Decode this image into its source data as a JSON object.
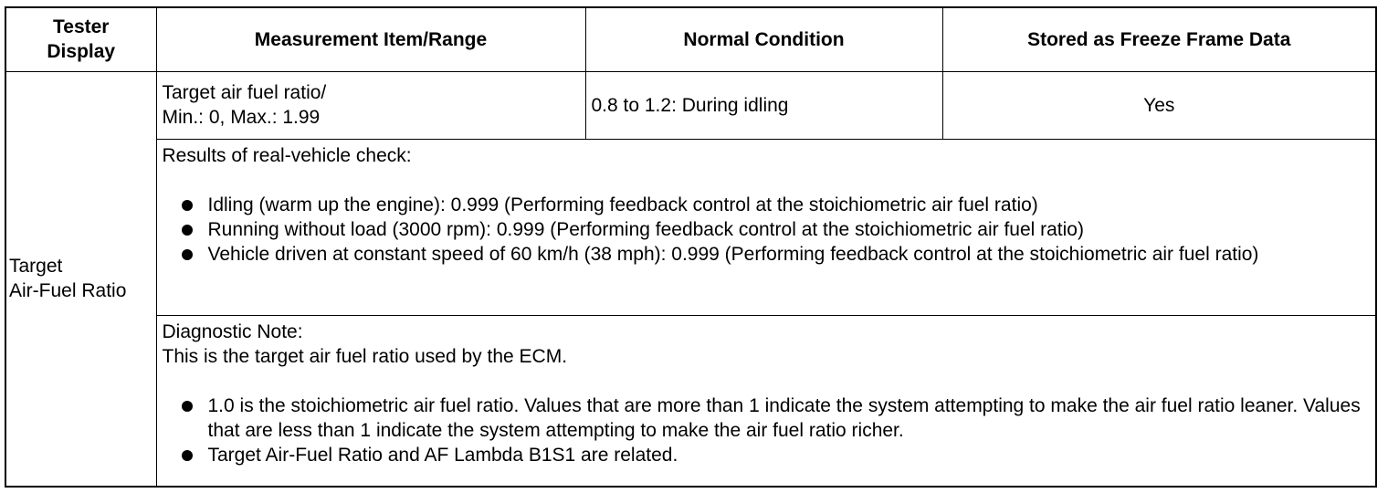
{
  "headers": {
    "tester_display": "Tester\nDisplay",
    "measurement": "Measurement Item/Range",
    "normal_condition": "Normal Condition",
    "freeze_frame": "Stored as Freeze Frame Data"
  },
  "row": {
    "tester_display": "Target\nAir-Fuel Ratio",
    "measurement_line1": "Target air fuel ratio/",
    "measurement_line2": "Min.: 0, Max.: 1.99",
    "normal_condition": "0.8 to 1.2: During idling",
    "freeze_frame": "Yes"
  },
  "real_vehicle": {
    "title": "Results of real-vehicle check:",
    "items": [
      "Idling (warm up the engine): 0.999 (Performing feedback control at the stoichiometric air fuel ratio)",
      "Running without load (3000 rpm): 0.999 (Performing feedback control at the stoichiometric air fuel ratio)",
      "Vehicle driven at constant speed of 60 km/h (38 mph): 0.999 (Performing feedback control at the stoichiometric air fuel ratio)"
    ]
  },
  "diagnostic_note": {
    "title": "Diagnostic Note:",
    "intro": "This is the target air fuel ratio used by the ECM.",
    "items": [
      "1.0 is the stoichiometric air fuel ratio. Values that are more than 1 indicate the system attempting to make the air fuel ratio leaner. Values that are less than 1 indicate the system attempting to make the air fuel ratio richer.",
      "Target Air-Fuel Ratio and AF Lambda B1S1 are related."
    ]
  }
}
